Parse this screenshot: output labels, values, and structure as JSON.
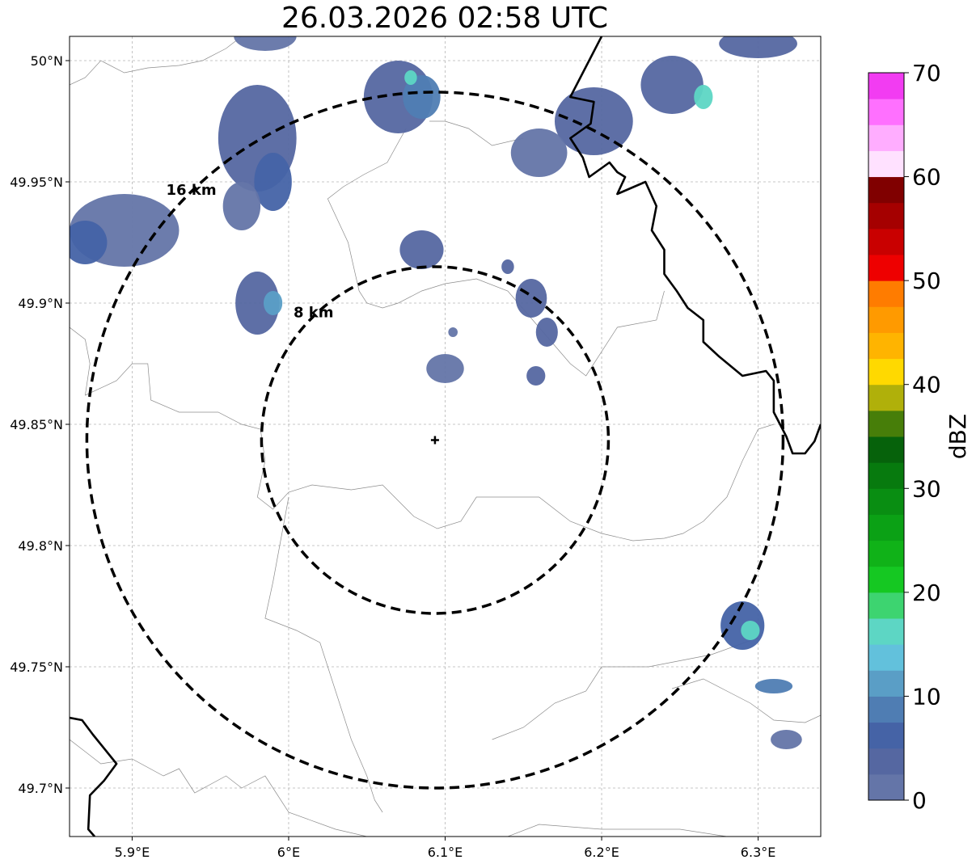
{
  "title": "26.03.2026 02:58 UTC",
  "extent": {
    "lon": [
      5.86,
      6.34
    ],
    "lat": [
      49.68,
      50.01
    ]
  },
  "lon_ticks": [
    {
      "value": 5.9,
      "label": "5.9°E"
    },
    {
      "value": 6.0,
      "label": "6°E"
    },
    {
      "value": 6.1,
      "label": "6.1°E"
    },
    {
      "value": 6.2,
      "label": "6.2°E"
    },
    {
      "value": 6.3,
      "label": "6.3°E"
    }
  ],
  "lat_ticks": [
    {
      "value": 49.7,
      "label": "49.7°N"
    },
    {
      "value": 49.75,
      "label": "49.75°N"
    },
    {
      "value": 49.8,
      "label": "49.8°N"
    },
    {
      "value": 49.85,
      "label": "49.85°N"
    },
    {
      "value": 49.9,
      "label": "49.9°N"
    },
    {
      "value": 49.95,
      "label": "49.95°N"
    },
    {
      "value": 50.0,
      "label": "50°N"
    }
  ],
  "radar_site": {
    "lon": 6.0935,
    "lat": 49.8435
  },
  "range_rings": [
    {
      "radius_deg_lat": 0.0715,
      "label": "8 km"
    },
    {
      "radius_deg_lat": 0.1435,
      "label": "16 km"
    }
  ],
  "colorbar": {
    "label": "dBZ",
    "min": 0,
    "max": 70,
    "ticks": [
      0,
      10,
      20,
      30,
      40,
      50,
      60,
      70
    ],
    "colors": [
      "#6475a8",
      "#5567a1",
      "#4563a6",
      "#4f7db3",
      "#5a9ec6",
      "#62c1dc",
      "#5dd6c4",
      "#3dd470",
      "#15c822",
      "#10b218",
      "#0ba115",
      "#098e12",
      "#077a0e",
      "#06620b",
      "#477e09",
      "#b0b00a",
      "#ffd900",
      "#ffb400",
      "#ff9a00",
      "#ff7c00",
      "#ee0000",
      "#c90000",
      "#a50000",
      "#800000",
      "#ffe1ff",
      "#ffadff",
      "#ff70ff",
      "#f23cf2"
    ]
  },
  "echoes": [
    {
      "lon": 5.98,
      "lat": 49.968,
      "rlon": 0.025,
      "rlat": 0.022,
      "dbz": 3
    },
    {
      "lon": 5.99,
      "lat": 49.95,
      "rlon": 0.012,
      "rlat": 0.012,
      "dbz": 6
    },
    {
      "lon": 5.97,
      "lat": 49.94,
      "rlon": 0.012,
      "rlat": 0.01,
      "dbz": 2
    },
    {
      "lon": 5.895,
      "lat": 49.93,
      "rlon": 0.035,
      "rlat": 0.015,
      "dbz": 2
    },
    {
      "lon": 5.87,
      "lat": 49.925,
      "rlon": 0.014,
      "rlat": 0.009,
      "dbz": 5
    },
    {
      "lon": 5.985,
      "lat": 50.01,
      "rlon": 0.02,
      "rlat": 0.006,
      "dbz": 2
    },
    {
      "lon": 5.98,
      "lat": 49.9,
      "rlon": 0.014,
      "rlat": 0.013,
      "dbz": 3
    },
    {
      "lon": 5.99,
      "lat": 49.9,
      "rlon": 0.006,
      "rlat": 0.005,
      "dbz": 10
    },
    {
      "lon": 6.07,
      "lat": 49.985,
      "rlon": 0.022,
      "rlat": 0.015,
      "dbz": 3
    },
    {
      "lon": 6.085,
      "lat": 49.985,
      "rlon": 0.012,
      "rlat": 0.009,
      "dbz": 9
    },
    {
      "lon": 6.078,
      "lat": 49.993,
      "rlon": 0.004,
      "rlat": 0.003,
      "dbz": 17
    },
    {
      "lon": 6.085,
      "lat": 49.922,
      "rlon": 0.014,
      "rlat": 0.008,
      "dbz": 3
    },
    {
      "lon": 6.155,
      "lat": 49.902,
      "rlon": 0.01,
      "rlat": 0.008,
      "dbz": 3
    },
    {
      "lon": 6.165,
      "lat": 49.888,
      "rlon": 0.007,
      "rlat": 0.006,
      "dbz": 4
    },
    {
      "lon": 6.14,
      "lat": 49.915,
      "rlon": 0.004,
      "rlat": 0.003,
      "dbz": 3
    },
    {
      "lon": 6.1,
      "lat": 49.873,
      "rlon": 0.012,
      "rlat": 0.006,
      "dbz": 2
    },
    {
      "lon": 6.158,
      "lat": 49.87,
      "rlon": 0.006,
      "rlat": 0.004,
      "dbz": 3
    },
    {
      "lon": 6.105,
      "lat": 49.888,
      "rlon": 0.003,
      "rlat": 0.002,
      "dbz": 2
    },
    {
      "lon": 6.195,
      "lat": 49.975,
      "rlon": 0.025,
      "rlat": 0.014,
      "dbz": 3
    },
    {
      "lon": 6.16,
      "lat": 49.962,
      "rlon": 0.018,
      "rlat": 0.01,
      "dbz": 2
    },
    {
      "lon": 6.245,
      "lat": 49.99,
      "rlon": 0.02,
      "rlat": 0.012,
      "dbz": 3
    },
    {
      "lon": 6.265,
      "lat": 49.985,
      "rlon": 0.006,
      "rlat": 0.005,
      "dbz": 15
    },
    {
      "lon": 6.3,
      "lat": 50.007,
      "rlon": 0.025,
      "rlat": 0.006,
      "dbz": 3
    },
    {
      "lon": 6.29,
      "lat": 49.767,
      "rlon": 0.014,
      "rlat": 0.01,
      "dbz": 5
    },
    {
      "lon": 6.295,
      "lat": 49.765,
      "rlon": 0.006,
      "rlat": 0.004,
      "dbz": 15
    },
    {
      "lon": 6.31,
      "lat": 49.742,
      "rlon": 0.012,
      "rlat": 0.003,
      "dbz": 8
    },
    {
      "lon": 6.318,
      "lat": 49.72,
      "rlon": 0.01,
      "rlat": 0.004,
      "dbz": 2
    }
  ],
  "country_border": [
    [
      [
        5.86,
        49.729
      ],
      [
        5.868,
        49.728
      ],
      [
        5.875,
        49.722
      ],
      [
        5.89,
        49.71
      ],
      [
        5.882,
        49.703
      ],
      [
        5.873,
        49.697
      ],
      [
        5.872,
        49.683
      ],
      [
        5.876,
        49.68
      ]
    ],
    [
      [
        6.2,
        50.01
      ],
      [
        6.18,
        49.985
      ],
      [
        6.195,
        49.983
      ],
      [
        6.193,
        49.974
      ],
      [
        6.18,
        49.968
      ],
      [
        6.188,
        49.96
      ],
      [
        6.192,
        49.952
      ],
      [
        6.205,
        49.958
      ],
      [
        6.21,
        49.954
      ],
      [
        6.215,
        49.952
      ],
      [
        6.21,
        49.945
      ],
      [
        6.228,
        49.95
      ],
      [
        6.235,
        49.94
      ],
      [
        6.232,
        49.93
      ],
      [
        6.24,
        49.922
      ],
      [
        6.24,
        49.912
      ],
      [
        6.248,
        49.905
      ],
      [
        6.255,
        49.898
      ],
      [
        6.265,
        49.893
      ],
      [
        6.265,
        49.884
      ],
      [
        6.275,
        49.878
      ],
      [
        6.29,
        49.87
      ],
      [
        6.305,
        49.872
      ],
      [
        6.31,
        49.868
      ],
      [
        6.31,
        49.855
      ],
      [
        6.318,
        49.845
      ],
      [
        6.322,
        49.838
      ],
      [
        6.33,
        49.838
      ],
      [
        6.336,
        49.843
      ],
      [
        6.34,
        49.85
      ]
    ]
  ],
  "admin_lines": [
    [
      [
        5.86,
        49.99
      ],
      [
        5.87,
        49.993
      ],
      [
        5.88,
        50.0
      ],
      [
        5.895,
        49.995
      ],
      [
        5.91,
        49.997
      ],
      [
        5.93,
        49.998
      ],
      [
        5.945,
        50.0
      ],
      [
        5.96,
        50.005
      ],
      [
        5.97,
        50.01
      ]
    ],
    [
      [
        5.86,
        49.89
      ],
      [
        5.87,
        49.885
      ],
      [
        5.873,
        49.875
      ],
      [
        5.87,
        49.862
      ],
      [
        5.89,
        49.868
      ],
      [
        5.9,
        49.875
      ],
      [
        5.91,
        49.875
      ],
      [
        5.912,
        49.86
      ],
      [
        5.93,
        49.855
      ],
      [
        5.955,
        49.855
      ],
      [
        5.97,
        49.85
      ],
      [
        5.982,
        49.848
      ],
      [
        5.985,
        49.835
      ],
      [
        5.98,
        49.82
      ],
      [
        5.99,
        49.815
      ],
      [
        6.0,
        49.822
      ],
      [
        6.015,
        49.825
      ],
      [
        6.04,
        49.823
      ],
      [
        6.06,
        49.825
      ],
      [
        6.08,
        49.812
      ],
      [
        6.095,
        49.807
      ],
      [
        6.11,
        49.81
      ],
      [
        6.12,
        49.82
      ],
      [
        6.145,
        49.82
      ],
      [
        6.16,
        49.82
      ],
      [
        6.18,
        49.81
      ],
      [
        6.2,
        49.805
      ],
      [
        6.22,
        49.802
      ],
      [
        6.24,
        49.803
      ],
      [
        6.252,
        49.805
      ],
      [
        6.265,
        49.81
      ],
      [
        6.28,
        49.82
      ],
      [
        6.29,
        49.835
      ],
      [
        6.3,
        49.848
      ],
      [
        6.31,
        49.85
      ]
    ],
    [
      [
        6.09,
        49.975
      ],
      [
        6.1,
        49.975
      ],
      [
        6.115,
        49.972
      ],
      [
        6.13,
        49.965
      ],
      [
        6.15,
        49.968
      ]
    ],
    [
      [
        6.075,
        49.972
      ],
      [
        6.063,
        49.958
      ],
      [
        6.048,
        49.953
      ],
      [
        6.035,
        49.948
      ],
      [
        6.025,
        49.943
      ],
      [
        6.038,
        49.925
      ],
      [
        6.045,
        49.905
      ],
      [
        6.05,
        49.9
      ],
      [
        6.06,
        49.898
      ],
      [
        6.07,
        49.9
      ],
      [
        6.085,
        49.905
      ],
      [
        6.1,
        49.908
      ],
      [
        6.12,
        49.91
      ],
      [
        6.14,
        49.905
      ],
      [
        6.16,
        49.89
      ],
      [
        6.18,
        49.875
      ],
      [
        6.19,
        49.87
      ],
      [
        6.21,
        49.89
      ],
      [
        6.235,
        49.893
      ],
      [
        6.24,
        49.905
      ]
    ],
    [
      [
        6.0,
        49.82
      ],
      [
        5.99,
        49.785
      ],
      [
        5.985,
        49.77
      ],
      [
        6.005,
        49.765
      ],
      [
        6.02,
        49.76
      ],
      [
        6.03,
        49.74
      ],
      [
        6.04,
        49.72
      ],
      [
        6.05,
        49.705
      ],
      [
        6.055,
        49.695
      ],
      [
        6.06,
        49.69
      ]
    ],
    [
      [
        5.86,
        49.72
      ],
      [
        5.87,
        49.715
      ],
      [
        5.88,
        49.71
      ],
      [
        5.9,
        49.712
      ],
      [
        5.92,
        49.705
      ],
      [
        5.93,
        49.708
      ],
      [
        5.94,
        49.698
      ],
      [
        5.96,
        49.705
      ],
      [
        5.97,
        49.7
      ],
      [
        5.985,
        49.705
      ],
      [
        6.0,
        49.69
      ],
      [
        6.03,
        49.683
      ],
      [
        6.05,
        49.68
      ]
    ],
    [
      [
        6.14,
        49.68
      ],
      [
        6.16,
        49.685
      ],
      [
        6.2,
        49.683
      ],
      [
        6.25,
        49.683
      ],
      [
        6.28,
        49.68
      ]
    ],
    [
      [
        6.13,
        49.72
      ],
      [
        6.15,
        49.725
      ],
      [
        6.17,
        49.735
      ],
      [
        6.19,
        49.74
      ],
      [
        6.2,
        49.75
      ],
      [
        6.23,
        49.75
      ],
      [
        6.27,
        49.755
      ],
      [
        6.3,
        49.762
      ]
    ],
    [
      [
        6.245,
        49.741
      ],
      [
        6.265,
        49.745
      ],
      [
        6.28,
        49.74
      ],
      [
        6.295,
        49.735
      ],
      [
        6.31,
        49.728
      ],
      [
        6.33,
        49.727
      ],
      [
        6.34,
        49.73
      ]
    ]
  ]
}
